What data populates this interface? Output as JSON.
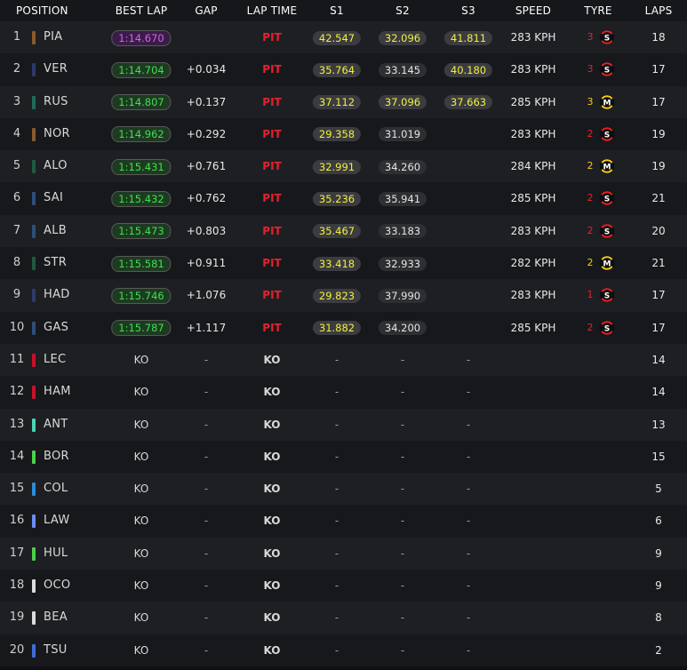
{
  "columns": {
    "position": "POSITION",
    "best_lap": "BEST LAP",
    "gap": "GAP",
    "lap_time": "LAP TIME",
    "s1": "S1",
    "s2": "S2",
    "s3": "S3",
    "speed": "SPEED",
    "tyre": "TYRE",
    "laps": "LAPS"
  },
  "tyre_compounds": {
    "S": {
      "letter": "S",
      "color": "#e8202a",
      "icon": "soft-tyre-icon"
    },
    "M": {
      "letter": "M",
      "color": "#f2cc1d",
      "icon": "medium-tyre-icon"
    }
  },
  "rows": [
    {
      "pos": "1",
      "code": "PIA",
      "team_color": "#8a5a2b",
      "best_lap": "1:14.670",
      "best_style": "purple",
      "gap": "",
      "lap_time": "PIT",
      "s1": "42.547",
      "s1_style": "yellow",
      "s2": "32.096",
      "s2_style": "yellow",
      "s3": "41.811",
      "s3_style": "yellow",
      "speed": "283 KPH",
      "tyre_age": "3",
      "tyre": "S",
      "laps": "18"
    },
    {
      "pos": "2",
      "code": "VER",
      "team_color": "#2b3a6b",
      "best_lap": "1:14.704",
      "best_style": "green",
      "gap": "+0.034",
      "lap_time": "PIT",
      "s1": "35.764",
      "s1_style": "yellow",
      "s2": "33.145",
      "s2_style": "grey",
      "s3": "40.180",
      "s3_style": "yellow",
      "speed": "283 KPH",
      "tyre_age": "3",
      "tyre": "S",
      "laps": "17"
    },
    {
      "pos": "3",
      "code": "RUS",
      "team_color": "#1f6b5a",
      "best_lap": "1:14.807",
      "best_style": "green",
      "gap": "+0.137",
      "lap_time": "PIT",
      "s1": "37.112",
      "s1_style": "yellow",
      "s2": "37.096",
      "s2_style": "yellow",
      "s3": "37.663",
      "s3_style": "yellow",
      "speed": "285 KPH",
      "tyre_age": "3",
      "tyre": "M",
      "laps": "17"
    },
    {
      "pos": "4",
      "code": "NOR",
      "team_color": "#8a5a2b",
      "best_lap": "1:14.962",
      "best_style": "green",
      "gap": "+0.292",
      "lap_time": "PIT",
      "s1": "29.358",
      "s1_style": "yellow",
      "s2": "31.019",
      "s2_style": "grey",
      "s3": "",
      "s3_style": "",
      "speed": "283 KPH",
      "tyre_age": "2",
      "tyre": "S",
      "laps": "19"
    },
    {
      "pos": "5",
      "code": "ALO",
      "team_color": "#1f5a3e",
      "best_lap": "1:15.431",
      "best_style": "green",
      "gap": "+0.761",
      "lap_time": "PIT",
      "s1": "32.991",
      "s1_style": "yellow",
      "s2": "34.260",
      "s2_style": "grey",
      "s3": "",
      "s3_style": "",
      "speed": "284 KPH",
      "tyre_age": "2",
      "tyre": "M",
      "laps": "19"
    },
    {
      "pos": "6",
      "code": "SAI",
      "team_color": "#2d4f78",
      "best_lap": "1:15.432",
      "best_style": "green",
      "gap": "+0.762",
      "lap_time": "PIT",
      "s1": "35.236",
      "s1_style": "yellow",
      "s2": "35.941",
      "s2_style": "grey",
      "s3": "",
      "s3_style": "",
      "speed": "285 KPH",
      "tyre_age": "2",
      "tyre": "S",
      "laps": "21"
    },
    {
      "pos": "7",
      "code": "ALB",
      "team_color": "#2d4f78",
      "best_lap": "1:15.473",
      "best_style": "green",
      "gap": "+0.803",
      "lap_time": "PIT",
      "s1": "35.467",
      "s1_style": "yellow",
      "s2": "33.183",
      "s2_style": "grey",
      "s3": "",
      "s3_style": "",
      "speed": "283 KPH",
      "tyre_age": "2",
      "tyre": "S",
      "laps": "20"
    },
    {
      "pos": "8",
      "code": "STR",
      "team_color": "#1f5a3e",
      "best_lap": "1:15.581",
      "best_style": "green",
      "gap": "+0.911",
      "lap_time": "PIT",
      "s1": "33.418",
      "s1_style": "yellow",
      "s2": "32.933",
      "s2_style": "grey",
      "s3": "",
      "s3_style": "",
      "speed": "282 KPH",
      "tyre_age": "2",
      "tyre": "M",
      "laps": "21"
    },
    {
      "pos": "9",
      "code": "HAD",
      "team_color": "#2b3a6b",
      "best_lap": "1:15.746",
      "best_style": "green",
      "gap": "+1.076",
      "lap_time": "PIT",
      "s1": "29.823",
      "s1_style": "yellow",
      "s2": "37.990",
      "s2_style": "grey",
      "s3": "",
      "s3_style": "",
      "speed": "283 KPH",
      "tyre_age": "1",
      "tyre": "S",
      "laps": "17"
    },
    {
      "pos": "10",
      "code": "GAS",
      "team_color": "#2d4f78",
      "best_lap": "1:15.787",
      "best_style": "green",
      "gap": "+1.117",
      "lap_time": "PIT",
      "s1": "31.882",
      "s1_style": "yellow",
      "s2": "34.200",
      "s2_style": "grey",
      "s3": "",
      "s3_style": "",
      "speed": "285 KPH",
      "tyre_age": "2",
      "tyre": "S",
      "laps": "17"
    },
    {
      "pos": "11",
      "code": "LEC",
      "team_color": "#c8102e",
      "best_lap": "KO",
      "gap": "-",
      "lap_time": "KO",
      "s1": "-",
      "s2": "-",
      "s3": "-",
      "speed": "",
      "tyre_age": "",
      "tyre": "",
      "laps": "14"
    },
    {
      "pos": "12",
      "code": "HAM",
      "team_color": "#c8102e",
      "best_lap": "KO",
      "gap": "-",
      "lap_time": "KO",
      "s1": "-",
      "s2": "-",
      "s3": "-",
      "speed": "",
      "tyre_age": "",
      "tyre": "",
      "laps": "14"
    },
    {
      "pos": "13",
      "code": "ANT",
      "team_color": "#4fd1b5",
      "best_lap": "KO",
      "gap": "-",
      "lap_time": "KO",
      "s1": "-",
      "s2": "-",
      "s3": "-",
      "speed": "",
      "tyre_age": "",
      "tyre": "",
      "laps": "13"
    },
    {
      "pos": "14",
      "code": "BOR",
      "team_color": "#4cd04c",
      "best_lap": "KO",
      "gap": "-",
      "lap_time": "KO",
      "s1": "-",
      "s2": "-",
      "s3": "-",
      "speed": "",
      "tyre_age": "",
      "tyre": "",
      "laps": "15"
    },
    {
      "pos": "15",
      "code": "COL",
      "team_color": "#2e8bd6",
      "best_lap": "KO",
      "gap": "-",
      "lap_time": "KO",
      "s1": "-",
      "s2": "-",
      "s3": "-",
      "speed": "",
      "tyre_age": "",
      "tyre": "",
      "laps": "5"
    },
    {
      "pos": "16",
      "code": "LAW",
      "team_color": "#6b8cf0",
      "best_lap": "KO",
      "gap": "-",
      "lap_time": "KO",
      "s1": "-",
      "s2": "-",
      "s3": "-",
      "speed": "",
      "tyre_age": "",
      "tyre": "",
      "laps": "6"
    },
    {
      "pos": "17",
      "code": "HUL",
      "team_color": "#4cd04c",
      "best_lap": "KO",
      "gap": "-",
      "lap_time": "KO",
      "s1": "-",
      "s2": "-",
      "s3": "-",
      "speed": "",
      "tyre_age": "",
      "tyre": "",
      "laps": "9"
    },
    {
      "pos": "18",
      "code": "OCO",
      "team_color": "#dcdcdc",
      "best_lap": "KO",
      "gap": "-",
      "lap_time": "KO",
      "s1": "-",
      "s2": "-",
      "s3": "-",
      "speed": "",
      "tyre_age": "",
      "tyre": "",
      "laps": "9"
    },
    {
      "pos": "19",
      "code": "BEA",
      "team_color": "#dcdcdc",
      "best_lap": "KO",
      "gap": "-",
      "lap_time": "KO",
      "s1": "-",
      "s2": "-",
      "s3": "-",
      "speed": "",
      "tyre_age": "",
      "tyre": "",
      "laps": "8"
    },
    {
      "pos": "20",
      "code": "TSU",
      "team_color": "#3b6fd6",
      "best_lap": "KO",
      "gap": "-",
      "lap_time": "KO",
      "s1": "-",
      "s2": "-",
      "s3": "-",
      "speed": "",
      "tyre_age": "",
      "tyre": "",
      "laps": "2"
    }
  ]
}
